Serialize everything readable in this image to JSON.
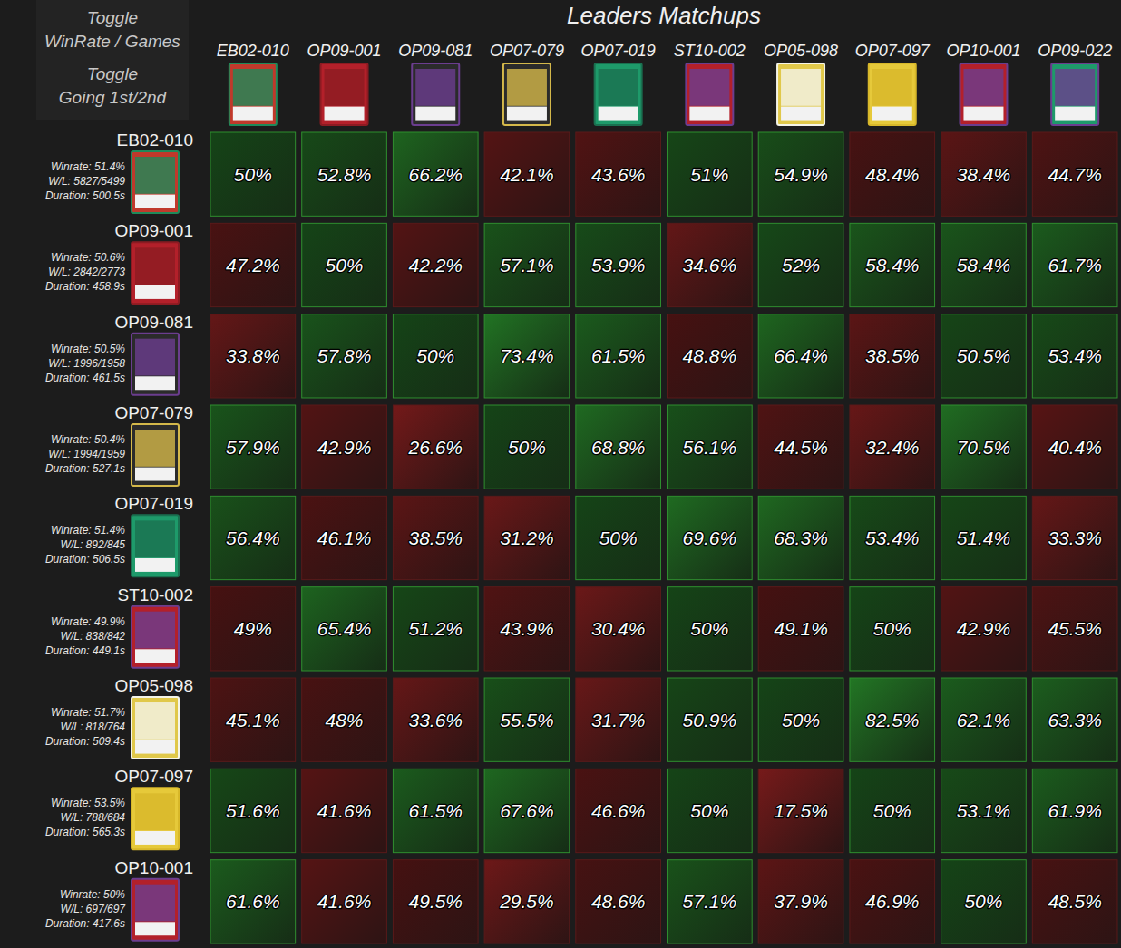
{
  "header": {
    "toggle_1": "Toggle",
    "toggle_1_label": "WinRate / Games",
    "toggle_2": "Toggle",
    "toggle_2_label": "Going 1st/2nd",
    "title": "Leaders Matchups"
  },
  "chart_data": {
    "type": "heatmap",
    "columns": [
      "EB02-010",
      "OP09-001",
      "OP09-081",
      "OP07-079",
      "OP07-019",
      "ST10-002",
      "OP05-098",
      "OP07-097",
      "OP10-001",
      "OP09-022"
    ],
    "rows": [
      {
        "name": "EB02-010",
        "winrate": "Winrate: 51.4%",
        "wl": "W/L: 5827/5499",
        "duration": "Duration: 500.5s"
      },
      {
        "name": "OP09-001",
        "winrate": "Winrate: 50.6%",
        "wl": "W/L: 2842/2773",
        "duration": "Duration: 458.9s"
      },
      {
        "name": "OP09-081",
        "winrate": "Winrate: 50.5%",
        "wl": "W/L: 1996/1958",
        "duration": "Duration: 461.5s"
      },
      {
        "name": "OP07-079",
        "winrate": "Winrate: 50.4%",
        "wl": "W/L: 1994/1959",
        "duration": "Duration: 527.1s"
      },
      {
        "name": "OP07-019",
        "winrate": "Winrate: 51.4%",
        "wl": "W/L: 892/845",
        "duration": "Duration: 506.5s"
      },
      {
        "name": "ST10-002",
        "winrate": "Winrate: 49.9%",
        "wl": "W/L: 838/842",
        "duration": "Duration: 449.1s"
      },
      {
        "name": "OP05-098",
        "winrate": "Winrate: 51.7%",
        "wl": "W/L: 818/764",
        "duration": "Duration: 509.4s"
      },
      {
        "name": "OP07-097",
        "winrate": "Winrate: 53.5%",
        "wl": "W/L: 788/684",
        "duration": "Duration: 565.3s"
      },
      {
        "name": "OP10-001",
        "winrate": "Winrate: 50%",
        "wl": "W/L: 697/697",
        "duration": "Duration: 417.6s"
      }
    ],
    "values": [
      [
        50,
        52.8,
        66.2,
        42.1,
        43.6,
        51,
        54.9,
        48.4,
        38.4,
        44.7
      ],
      [
        47.2,
        50,
        42.2,
        57.1,
        53.9,
        34.6,
        52,
        58.4,
        58.4,
        61.7
      ],
      [
        33.8,
        57.8,
        50,
        73.4,
        61.5,
        48.8,
        66.4,
        38.5,
        50.5,
        53.4
      ],
      [
        57.9,
        42.9,
        26.6,
        50,
        68.8,
        56.1,
        44.5,
        32.4,
        70.5,
        40.4
      ],
      [
        56.4,
        46.1,
        38.5,
        31.2,
        50,
        69.6,
        68.3,
        53.4,
        51.4,
        33.3
      ],
      [
        49,
        65.4,
        51.2,
        43.9,
        30.4,
        50,
        49.1,
        50,
        42.9,
        45.5
      ],
      [
        45.1,
        48,
        33.6,
        55.5,
        31.7,
        50.9,
        50,
        82.5,
        62.1,
        63.3
      ],
      [
        51.6,
        41.6,
        61.5,
        67.6,
        46.6,
        50,
        17.5,
        50,
        53.1,
        61.9
      ],
      [
        61.6,
        41.6,
        49.5,
        29.5,
        48.6,
        57.1,
        37.9,
        46.9,
        50,
        48.5
      ]
    ],
    "value_labels": [
      [
        "50%",
        "52.8%",
        "66.2%",
        "42.1%",
        "43.6%",
        "51%",
        "54.9%",
        "48.4%",
        "38.4%",
        "44.7%"
      ],
      [
        "47.2%",
        "50%",
        "42.2%",
        "57.1%",
        "53.9%",
        "34.6%",
        "52%",
        "58.4%",
        "58.4%",
        "61.7%"
      ],
      [
        "33.8%",
        "57.8%",
        "50%",
        "73.4%",
        "61.5%",
        "48.8%",
        "66.4%",
        "38.5%",
        "50.5%",
        "53.4%"
      ],
      [
        "57.9%",
        "42.9%",
        "26.6%",
        "50%",
        "68.8%",
        "56.1%",
        "44.5%",
        "32.4%",
        "70.5%",
        "40.4%"
      ],
      [
        "56.4%",
        "46.1%",
        "38.5%",
        "31.2%",
        "50%",
        "69.6%",
        "68.3%",
        "53.4%",
        "51.4%",
        "33.3%"
      ],
      [
        "49%",
        "65.4%",
        "51.2%",
        "43.9%",
        "30.4%",
        "50%",
        "49.1%",
        "50%",
        "42.9%",
        "45.5%"
      ],
      [
        "45.1%",
        "48%",
        "33.6%",
        "55.5%",
        "31.7%",
        "50.9%",
        "50%",
        "82.5%",
        "62.1%",
        "63.3%"
      ],
      [
        "51.6%",
        "41.6%",
        "61.5%",
        "67.6%",
        "46.6%",
        "50%",
        "17.5%",
        "50%",
        "53.1%",
        "61.9%"
      ],
      [
        "61.6%",
        "41.6%",
        "49.5%",
        "29.5%",
        "48.6%",
        "57.1%",
        "37.9%",
        "46.9%",
        "50%",
        "48.5%"
      ]
    ],
    "color_range": [
      0,
      100
    ]
  }
}
